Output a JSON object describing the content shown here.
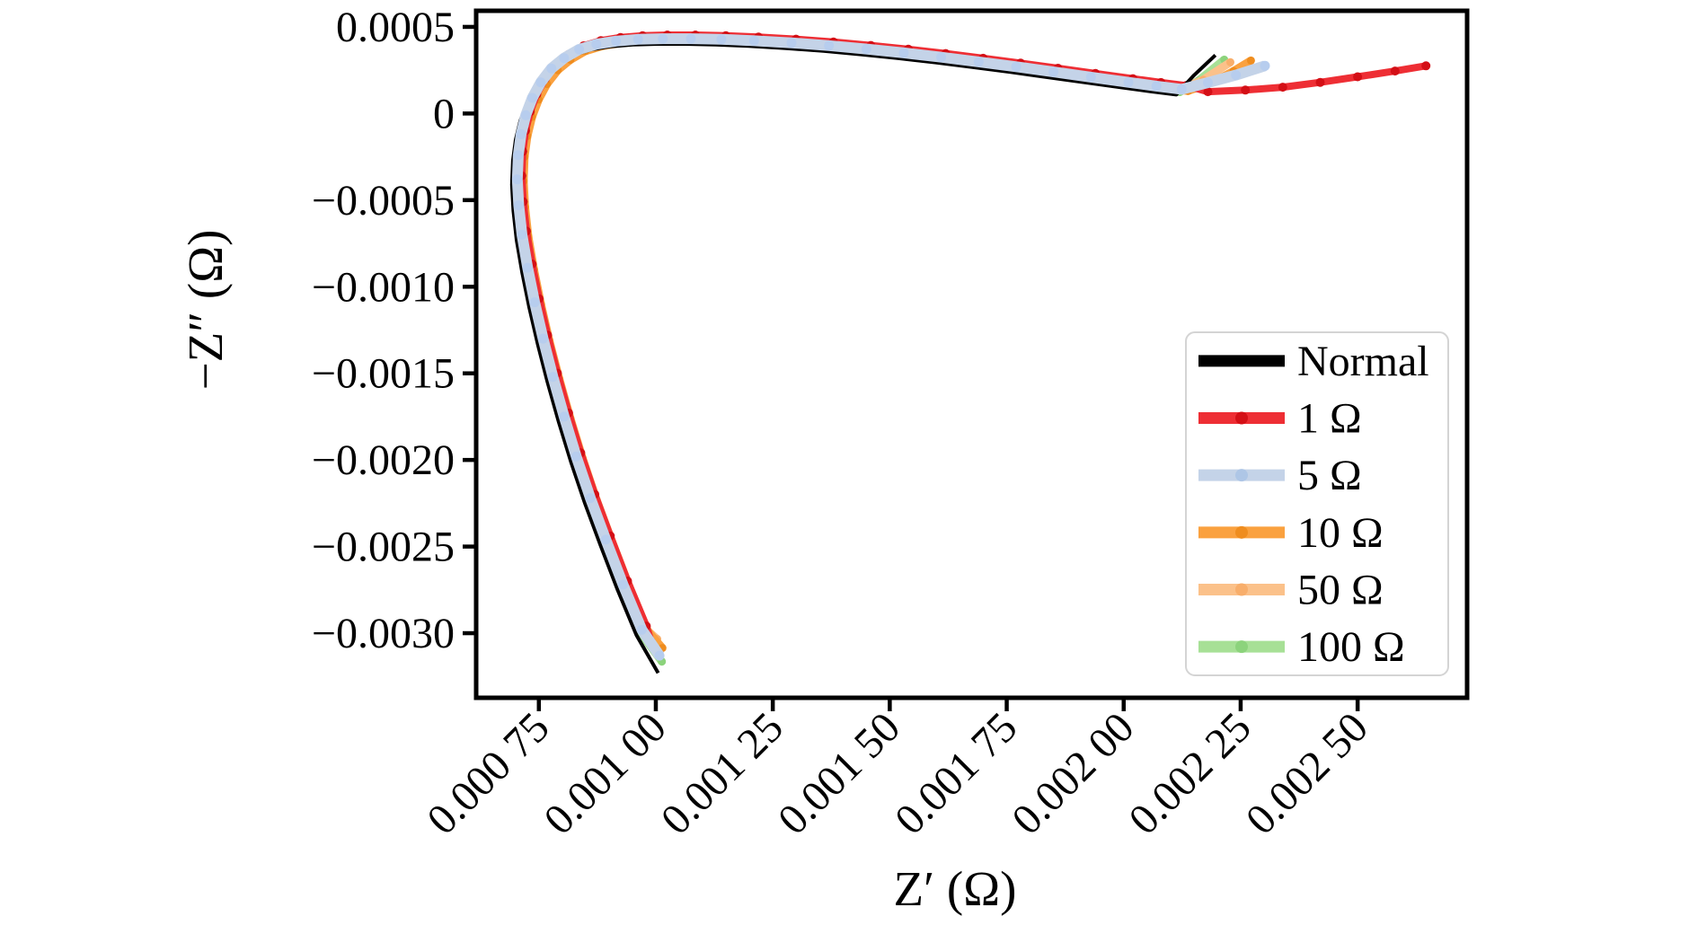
{
  "figure": {
    "background": "#ffffff",
    "spine_color": "#000000"
  },
  "chart_data": {
    "type": "line",
    "title": "",
    "xlabel": "Z′ (Ω)",
    "ylabel": "−Z″ (Ω)",
    "grid": false,
    "legend_position": "right-inside",
    "xlim": [
      0.000616,
      0.002734
    ],
    "ylim": [
      -0.003373,
      0.000593
    ],
    "x_ticks": {
      "rotation": -45,
      "values": [
        0.00075,
        0.001,
        0.00125,
        0.0015,
        0.00175,
        0.002,
        0.00225,
        0.0025
      ],
      "labels": [
        "0.000 75",
        "0.001 00",
        "0.001 25",
        "0.001 50",
        "0.001 75",
        "0.002 00",
        "0.002 25",
        "0.002 50"
      ]
    },
    "y_ticks": {
      "values": [
        0.0005,
        0,
        -0.0005,
        -0.001,
        -0.0015,
        -0.002,
        -0.0025,
        -0.003
      ],
      "labels": [
        "0.0005",
        "0",
        "−0.0005",
        "−0.0010",
        "−0.0015",
        "−0.0020",
        "−0.0025",
        "−0.0030"
      ]
    },
    "backbone_note": "Shared Nyquist curve shape (Z-prime, minus Z-double-prime) in ohms; each series = bottom_tip + backbone(+dx,+dy) + tail",
    "backbone": [
      [
        0.00097,
        -0.00298
      ],
      [
        0.00093,
        -0.00272
      ],
      [
        0.000893,
        -0.00246
      ],
      [
        0.00086,
        -0.00222
      ],
      [
        0.00083,
        -0.00198
      ],
      [
        0.000804,
        -0.00175
      ],
      [
        0.00078,
        -0.00152
      ],
      [
        0.000759,
        -0.0013
      ],
      [
        0.000741,
        -0.00109
      ],
      [
        0.000726,
        -0.00089
      ],
      [
        0.000714,
        -0.0007
      ],
      [
        0.000707,
        -0.00053
      ],
      [
        0.000704,
        -0.00038
      ],
      [
        0.000706,
        -0.00024
      ],
      [
        0.000712,
        -0.00012
      ],
      [
        0.000722,
        -1e-05
      ],
      [
        0.000736,
        9e-05
      ],
      [
        0.000754,
        0.00018
      ],
      [
        0.000777,
        0.00026
      ],
      [
        0.000804,
        0.00032
      ],
      [
        0.000836,
        0.00037
      ],
      [
        0.000873,
        0.0004
      ],
      [
        0.000915,
        0.000418
      ],
      [
        0.000962,
        0.000428
      ],
      [
        0.001015,
        0.000432
      ],
      [
        0.001075,
        0.000432
      ],
      [
        0.00114,
        0.000428
      ],
      [
        0.00121,
        0.00042
      ],
      [
        0.00129,
        0.000408
      ],
      [
        0.00137,
        0.000392
      ],
      [
        0.00145,
        0.000372
      ],
      [
        0.00153,
        0.00035
      ],
      [
        0.00161,
        0.000325
      ],
      [
        0.00169,
        0.000298
      ],
      [
        0.00177,
        0.00027
      ],
      [
        0.00185,
        0.00024
      ],
      [
        0.00193,
        0.00021
      ],
      [
        0.00201,
        0.00018
      ],
      [
        0.00207,
        0.000158
      ],
      [
        0.002124,
        0.00014
      ]
    ],
    "series": [
      {
        "label": "100 Ω",
        "color": "#a7e096",
        "marker_color": "#8cd37c",
        "width": 9,
        "marker_r": 4.5,
        "dx": -3.8e-06,
        "dy": -1.55e-05,
        "bottom_tip": [
          [
            0.001013,
            -0.003164
          ]
        ],
        "tail": [
          [
            0.00216,
            0.00019
          ],
          [
            0.002215,
            0.000311
          ]
        ]
      },
      {
        "label": "50 Ω",
        "color": "#fbc18a",
        "marker_color": "#f8ae6b",
        "width": 9,
        "marker_r": 4.5,
        "dx": 5.8e-06,
        "dy": 1e-05,
        "bottom_tip": [
          [
            0.001003,
            -0.003034
          ]
        ],
        "tail": [
          [
            0.00217,
            0.000195
          ],
          [
            0.002228,
            0.000296
          ]
        ]
      },
      {
        "label": "10 Ω",
        "color": "#faa13f",
        "marker_color": "#ef8d1f",
        "width": 9,
        "marker_r": 4.5,
        "dx": 1.34e-05,
        "dy": -1e-05,
        "bottom_tip": [
          [
            0.001014,
            -0.003086
          ]
        ],
        "tail": [
          [
            0.00219,
            0.00018
          ],
          [
            0.002235,
            0.000245
          ],
          [
            0.002272,
            0.000306
          ]
        ]
      },
      {
        "label": "1 Ω",
        "color": "#ee2e34",
        "marker_color": "#d40f16",
        "width": 8,
        "marker_r": 5,
        "dx": 9.6e-06,
        "dy": 2.1e-05,
        "bottom_tip": [
          [
            0.00099,
            -0.00305
          ]
        ],
        "tail": [
          [
            0.00218,
            0.000126
          ],
          [
            0.00226,
            0.000135
          ],
          [
            0.00234,
            0.000152
          ],
          [
            0.00242,
            0.00018
          ],
          [
            0.0025,
            0.000212
          ],
          [
            0.00258,
            0.000245
          ],
          [
            0.002646,
            0.000275
          ]
        ]
      },
      {
        "label": "Normal",
        "color": "#000000",
        "marker_color": null,
        "width": 4,
        "marker_r": 0,
        "dx": -1.15e-05,
        "dy": -3.1e-05,
        "bottom_tip": [
          [
            0.001005,
            -0.00323
          ]
        ],
        "tail": [
          [
            0.00215,
            0.00022
          ],
          [
            0.002196,
            0.000337
          ]
        ]
      },
      {
        "label": "5 Ω",
        "color": "#c4d3e8",
        "marker_color": "#b7cdee",
        "width": 12,
        "marker_r": 5.5,
        "dx": 0,
        "dy": 0,
        "bottom_tip": [
          [
            0.001008,
            -0.00313
          ]
        ],
        "tail": [
          [
            0.00218,
            0.000178
          ],
          [
            0.00224,
            0.000222
          ],
          [
            0.002302,
            0.000275
          ]
        ]
      }
    ],
    "legend": {
      "entries": [
        {
          "label": "Normal",
          "color": "#000000",
          "marker_color": null
        },
        {
          "label": "1 Ω",
          "color": "#ee2e34",
          "marker_color": "#d40f16"
        },
        {
          "label": "5 Ω",
          "color": "#c4d3e8",
          "marker_color": "#aec6e6"
        },
        {
          "label": "10 Ω",
          "color": "#faa13f",
          "marker_color": "#ef8d1f"
        },
        {
          "label": "50 Ω",
          "color": "#fbc18a",
          "marker_color": "#f8ae6b"
        },
        {
          "label": "100 Ω",
          "color": "#a7e096",
          "marker_color": "#8cd37c"
        }
      ],
      "border_color": "#d4d4d4",
      "fill_color": "#ffffff"
    }
  }
}
